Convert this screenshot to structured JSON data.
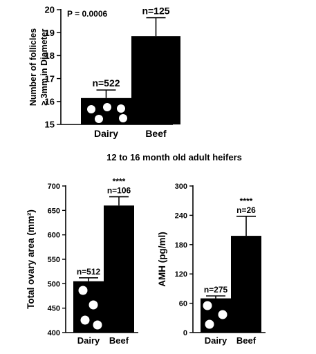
{
  "heading": "12 to 16 month old adult heifers",
  "chart_data": [
    {
      "type": "bar",
      "categories": [
        "Dairy",
        "Beef"
      ],
      "values": [
        16.15,
        18.85
      ],
      "errors": [
        0.35,
        0.8
      ],
      "n_labels": [
        "n=522",
        "n=125"
      ],
      "ylabel_lines": [
        "Number of follicles",
        "≥ 3mm in Diameter"
      ],
      "ylim": [
        15,
        20
      ],
      "yticks": [
        15,
        16,
        17,
        18,
        19,
        20
      ],
      "annotation": "P = 0.0006",
      "significance": [
        "",
        ""
      ]
    },
    {
      "type": "bar",
      "categories": [
        "Dairy",
        "Beef"
      ],
      "values": [
        505,
        660
      ],
      "errors": [
        7,
        18
      ],
      "n_labels": [
        "n=512",
        "n=106"
      ],
      "ylabel": "Total ovary area (mm²)",
      "ylim": [
        400,
        700
      ],
      "yticks": [
        400,
        450,
        500,
        550,
        600,
        650,
        700
      ],
      "significance": [
        "",
        "****"
      ]
    },
    {
      "type": "bar",
      "categories": [
        "Dairy",
        "Beef"
      ],
      "values": [
        70,
        198
      ],
      "errors": [
        5,
        40
      ],
      "n_labels": [
        "n=275",
        "n=26"
      ],
      "ylabel": "AMH (pg/ml)",
      "ylim": [
        0,
        300
      ],
      "yticks": [
        0,
        60,
        120,
        180,
        240,
        300
      ],
      "significance": [
        "",
        "****"
      ]
    }
  ]
}
